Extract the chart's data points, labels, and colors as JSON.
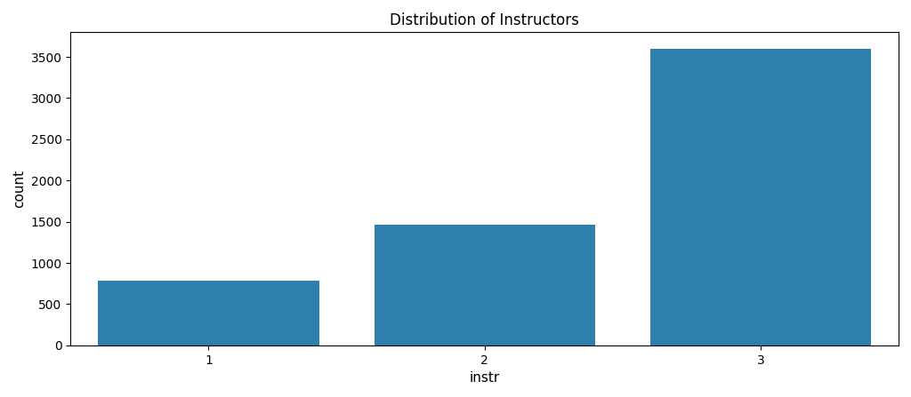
{
  "categories": [
    "1",
    "2",
    "3"
  ],
  "values": [
    790,
    1463,
    3600
  ],
  "bar_color": "#2e7fac",
  "title": "Distribution of Instructors",
  "xlabel": "instr",
  "ylabel": "count",
  "ylim": [
    0,
    3800
  ],
  "yticks": [
    0,
    500,
    1000,
    1500,
    2000,
    2500,
    3000,
    3500
  ],
  "title_fontsize": 12,
  "label_fontsize": 11,
  "bar_width": 0.8,
  "figsize": [
    10.24,
    4.47
  ],
  "dpi": 100
}
